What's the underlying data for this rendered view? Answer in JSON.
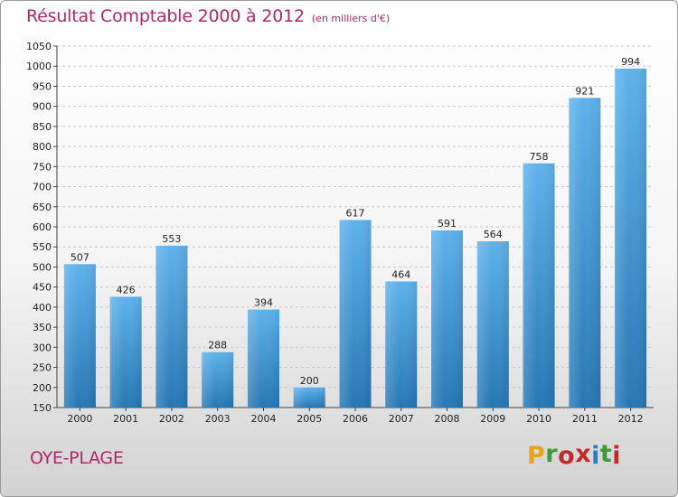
{
  "header": {
    "title": "Résultat Comptable 2000 à 2012",
    "subtitle": "(en milliers d'€)"
  },
  "footer": {
    "place": "OYE-PLAGE",
    "logo_letters": [
      "P",
      "r",
      "o",
      "x",
      "i",
      "t",
      "i"
    ],
    "logo_colors": [
      "#e8a21b",
      "#3f9a3a",
      "#c42a2a",
      "#c42a2a",
      "#2a7ec4",
      "#3f9a3a",
      "#c42a2a"
    ]
  },
  "colors": {
    "bar_top": "#5eb2ec",
    "bar_bottom": "#2677b4",
    "grid": "#c8c8c8"
  },
  "chart_data": {
    "type": "bar",
    "categories": [
      "2000",
      "2001",
      "2002",
      "2003",
      "2004",
      "2005",
      "2006",
      "2007",
      "2008",
      "2009",
      "2010",
      "2011",
      "2012"
    ],
    "values": [
      507,
      426,
      553,
      288,
      394,
      200,
      617,
      464,
      591,
      564,
      758,
      921,
      994
    ],
    "title": "Résultat Comptable 2000 à 2012",
    "subtitle": "(en milliers d'€)",
    "xlabel": "",
    "ylabel": "",
    "ylim": [
      150,
      1050
    ],
    "ytick_step": 50,
    "grid": true,
    "legend": "none"
  }
}
